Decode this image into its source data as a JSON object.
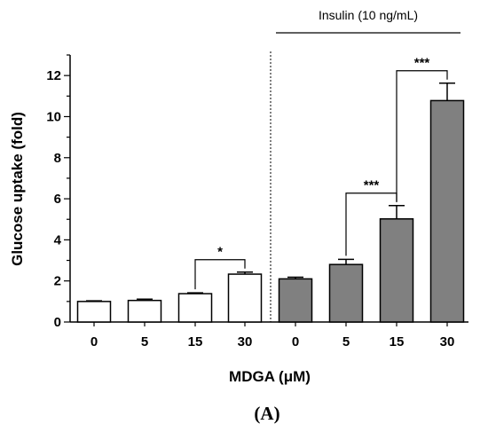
{
  "chart_data": {
    "type": "bar",
    "xlabel": "MDGA (μM)",
    "ylabel": "Glucose uptake (fold)",
    "ylim": [
      0,
      13
    ],
    "yticks": [
      "0",
      "2",
      "4",
      "6",
      "8",
      "10",
      "12"
    ],
    "grid": false,
    "categories": [
      "0",
      "5",
      "15",
      "30",
      "0",
      "5",
      "15",
      "30"
    ],
    "values": [
      1.0,
      1.05,
      1.38,
      2.33,
      2.1,
      2.8,
      5.02,
      10.78
    ],
    "errors": [
      0.03,
      0.06,
      0.04,
      0.1,
      0.08,
      0.25,
      0.65,
      0.85
    ],
    "fill_colors": [
      "#ffffff",
      "#ffffff",
      "#ffffff",
      "#ffffff",
      "#808080",
      "#808080",
      "#808080",
      "#808080"
    ],
    "group_label": "Insulin (10 ng/mL)",
    "group_start_index": 4,
    "significance": [
      {
        "from": 2,
        "to": 3,
        "label": "*"
      },
      {
        "from": 5,
        "to": 6,
        "label": "***"
      },
      {
        "from": 6,
        "to": 7,
        "label": "***"
      }
    ],
    "panel_label": "(A)"
  }
}
